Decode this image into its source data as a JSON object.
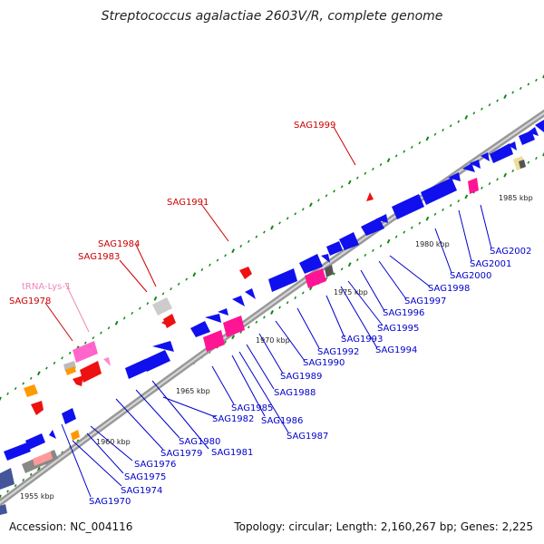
{
  "title": "Streptococcus agalactiae 2603V/R, complete genome",
  "footer": {
    "accession": "Accession: NC_004116",
    "topology": "Topology: circular; Length: 2,160,267 bp; Genes: 2,225"
  },
  "colors": {
    "cds": "#1010ee",
    "trna": "#ff88cc",
    "red_label": "#cc0000",
    "blue_label": "#0000cc",
    "pink_label": "#ee88bb",
    "backbone": "#888888"
  },
  "kbp_ticks": [
    "1955 kbp",
    "1960 kbp",
    "1965 kbp",
    "1970 kbp",
    "1975 kbp",
    "1980 kbp",
    "1985 kbp"
  ],
  "gene_labels_upper": [
    {
      "text": "tRNA-Lys-1",
      "color": "pink"
    },
    {
      "text": "SAG1978",
      "color": "red"
    },
    {
      "text": "SAG1983",
      "color": "red"
    },
    {
      "text": "SAG1984",
      "color": "red"
    },
    {
      "text": "SAG1991",
      "color": "red"
    },
    {
      "text": "SAG1999",
      "color": "red"
    }
  ],
  "gene_labels_lower": [
    "SAG1970",
    "SAG1974",
    "SAG1975",
    "SAG1976",
    "SAG1979",
    "SAG1980",
    "SAG1981",
    "SAG1982",
    "SAG1985",
    "SAG1986",
    "SAG1987",
    "SAG1988",
    "SAG1989",
    "SAG1990",
    "SAG1992",
    "SAG1993",
    "SAG1994",
    "SAG1995",
    "SAG1996",
    "SAG1997",
    "SAG1998",
    "SAG2000",
    "SAG2001",
    "SAG2002"
  ]
}
